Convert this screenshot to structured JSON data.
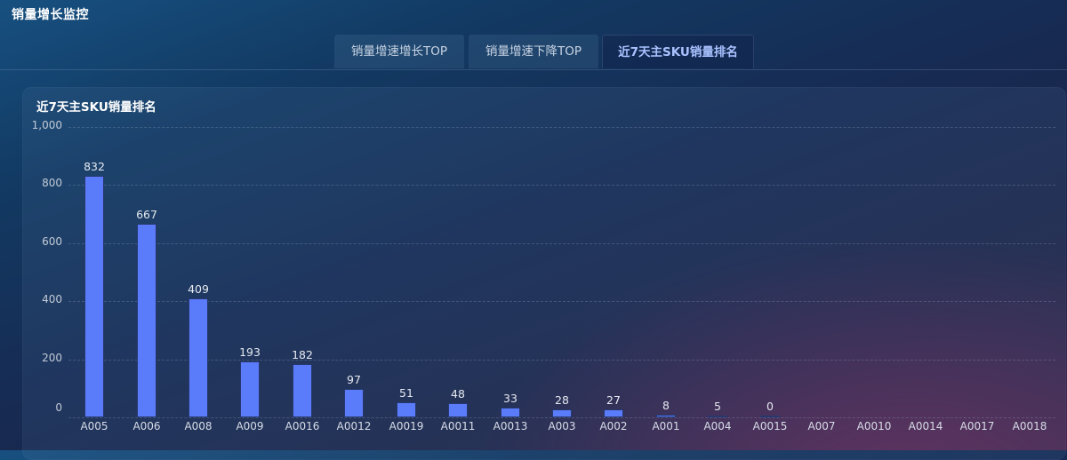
{
  "header": {
    "title": "销量增长监控"
  },
  "tabs": [
    {
      "label": "销量增速增长TOP",
      "active": false
    },
    {
      "label": "销量增速下降TOP",
      "active": false
    },
    {
      "label": "近7天主SKU销量排名",
      "active": true
    }
  ],
  "panel": {
    "title": "近7天主SKU销量排名"
  },
  "colors": {
    "bar": "#5b7cfa",
    "active_tab_text": "#a9c2ff"
  },
  "chart_data": {
    "type": "bar",
    "title": "近7天主SKU销量排名",
    "xlabel": "",
    "ylabel": "",
    "ylim": [
      0,
      1000
    ],
    "yticks": [
      "0",
      "200",
      "400",
      "600",
      "800",
      "1,000"
    ],
    "grid": true,
    "legend": null,
    "categories": [
      "A005",
      "A006",
      "A008",
      "A009",
      "A0016",
      "A0012",
      "A0019",
      "A0011",
      "A0013",
      "A003",
      "A002",
      "A001",
      "A004",
      "A0015",
      "A007",
      "A0010",
      "A0014",
      "A0017",
      "A0018"
    ],
    "values": [
      832,
      667,
      409,
      193,
      182,
      97,
      51,
      48,
      33,
      28,
      27,
      8,
      5,
      0,
      null,
      null,
      null,
      null,
      null
    ],
    "data_labels": [
      "832",
      "667",
      "409",
      "193",
      "182",
      "97",
      "51",
      "48",
      "33",
      "28",
      "27",
      "8",
      "5",
      "0",
      "",
      "",
      "",
      "",
      ""
    ]
  }
}
